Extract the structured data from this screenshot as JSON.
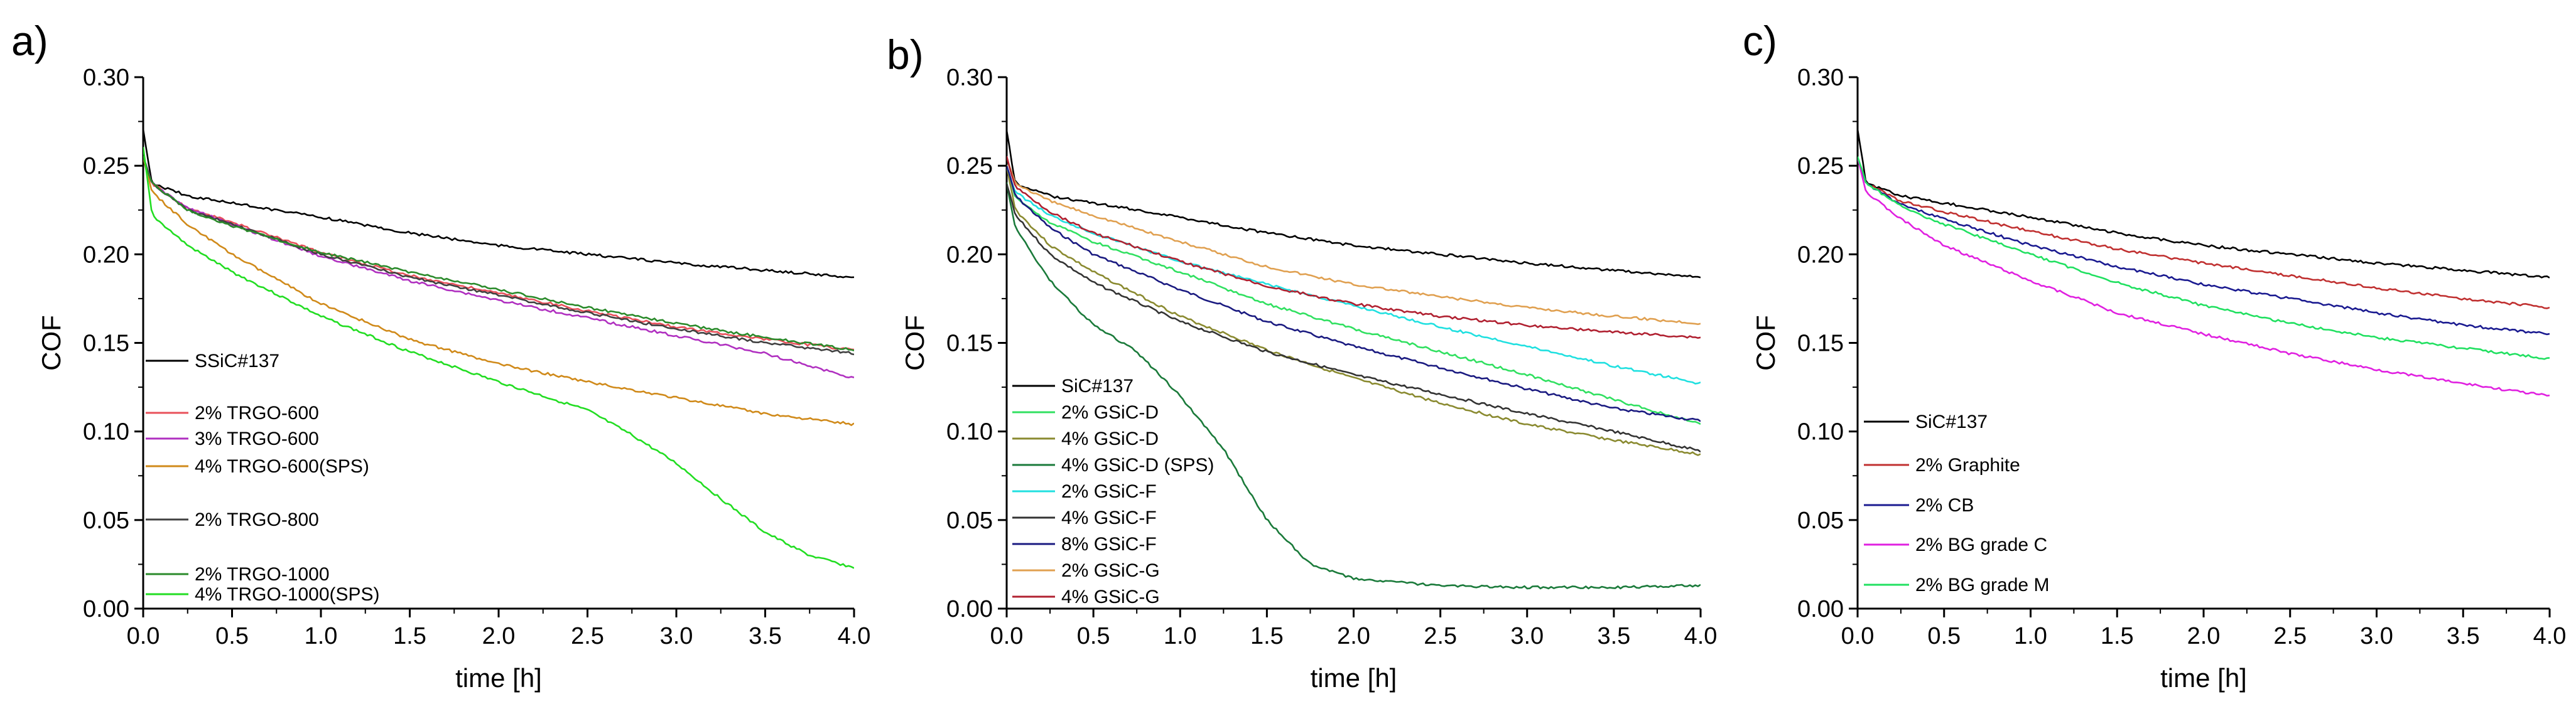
{
  "figure": {
    "description": "Coefficient of friction vs time for SiC composites"
  },
  "chart_data": [
    {
      "type": "line",
      "panel_label": "a)",
      "xlabel": "time [h]",
      "ylabel": "COF",
      "xlim": [
        0,
        4.0
      ],
      "ylim": [
        0,
        0.3
      ],
      "xticks": [
        "0.0",
        "0.5",
        "1.0",
        "1.5",
        "2.0",
        "2.5",
        "3.0",
        "3.5",
        "4.0"
      ],
      "yticks": [
        "0.00",
        "0.05",
        "0.10",
        "0.15",
        "0.20",
        "0.25",
        "0.30"
      ],
      "series": [
        {
          "name": "SSiC#137",
          "color": "#000000",
          "x": [
            0,
            0.05,
            0.25,
            0.5,
            1,
            1.5,
            2,
            2.5,
            3,
            3.5,
            4
          ],
          "y": [
            0.27,
            0.24,
            0.233,
            0.229,
            0.221,
            0.212,
            0.205,
            0.2,
            0.195,
            0.191,
            0.187
          ]
        },
        {
          "name": "2% TRGO-600",
          "color": "#e8505a",
          "x": [
            0,
            0.05,
            0.25,
            0.5,
            1,
            1.5,
            2,
            2.5,
            3,
            3.5,
            4
          ],
          "y": [
            0.255,
            0.24,
            0.226,
            0.218,
            0.201,
            0.188,
            0.178,
            0.168,
            0.159,
            0.152,
            0.146
          ]
        },
        {
          "name": "3% TRGO-600",
          "color": "#b030c0",
          "x": [
            0,
            0.05,
            0.25,
            0.5,
            1,
            1.5,
            2,
            2.5,
            3,
            3.5,
            4
          ],
          "y": [
            0.255,
            0.24,
            0.226,
            0.217,
            0.199,
            0.185,
            0.174,
            0.164,
            0.154,
            0.144,
            0.13
          ]
        },
        {
          "name": "4% TRGO-600(SPS)",
          "color": "#d08a1a",
          "x": [
            0,
            0.05,
            0.25,
            0.5,
            1,
            1.5,
            2,
            2.5,
            3,
            3.5,
            4
          ],
          "y": [
            0.255,
            0.235,
            0.217,
            0.2,
            0.172,
            0.152,
            0.138,
            0.128,
            0.119,
            0.11,
            0.104
          ]
        },
        {
          "name": "2% TRGO-800",
          "color": "#404040",
          "x": [
            0,
            0.05,
            0.25,
            0.5,
            1,
            1.5,
            2,
            2.5,
            3,
            3.5,
            4
          ],
          "y": [
            0.255,
            0.24,
            0.225,
            0.217,
            0.2,
            0.187,
            0.177,
            0.167,
            0.158,
            0.15,
            0.144
          ]
        },
        {
          "name": "2% TRGO-1000",
          "color": "#2a8a2a",
          "x": [
            0,
            0.05,
            0.25,
            0.5,
            1,
            1.5,
            2,
            2.5,
            3,
            3.5,
            4
          ],
          "y": [
            0.255,
            0.24,
            0.225,
            0.216,
            0.201,
            0.19,
            0.18,
            0.17,
            0.161,
            0.153,
            0.146
          ]
        },
        {
          "name": "4% TRGO-1000(SPS)",
          "color": "#22dd22",
          "x": [
            0,
            0.05,
            0.25,
            0.5,
            1,
            1.5,
            2,
            2.5,
            2.75,
            3,
            3.25,
            3.5,
            3.75,
            4
          ],
          "y": [
            0.26,
            0.222,
            0.205,
            0.19,
            0.165,
            0.145,
            0.128,
            0.112,
            0.098,
            0.082,
            0.062,
            0.043,
            0.03,
            0.023
          ]
        }
      ],
      "legend": {
        "placement": "lower-left",
        "entries": [
          "SSiC#137",
          "2% TRGO-600",
          "3% TRGO-600",
          "4% TRGO-600(SPS)",
          "2% TRGO-800",
          "2% TRGO-1000",
          "4% TRGO-1000(SPS)"
        ]
      }
    },
    {
      "type": "line",
      "panel_label": "b)",
      "xlabel": "time [h]",
      "ylabel": "COF",
      "xlim": [
        0,
        4.0
      ],
      "ylim": [
        0,
        0.3
      ],
      "xticks": [
        "0.0",
        "0.5",
        "1.0",
        "1.5",
        "2.0",
        "2.5",
        "3.0",
        "3.5",
        "4.0"
      ],
      "yticks": [
        "0.00",
        "0.05",
        "0.10",
        "0.15",
        "0.20",
        "0.25",
        "0.30"
      ],
      "series": [
        {
          "name": "SiC#137",
          "color": "#000000",
          "x": [
            0,
            0.05,
            0.25,
            0.5,
            1,
            1.5,
            2,
            2.5,
            3,
            3.5,
            4
          ],
          "y": [
            0.27,
            0.24,
            0.233,
            0.229,
            0.221,
            0.212,
            0.205,
            0.2,
            0.195,
            0.191,
            0.187
          ]
        },
        {
          "name": "2% GSiC-D",
          "color": "#30e060",
          "x": [
            0,
            0.05,
            0.25,
            0.5,
            1,
            1.5,
            2,
            2.5,
            3,
            3.5,
            4
          ],
          "y": [
            0.25,
            0.232,
            0.218,
            0.207,
            0.19,
            0.172,
            0.158,
            0.145,
            0.132,
            0.118,
            0.104
          ]
        },
        {
          "name": "4% GSiC-D",
          "color": "#8a8a30",
          "x": [
            0,
            0.05,
            0.25,
            0.5,
            1,
            1.5,
            2,
            2.5,
            3,
            3.5,
            4
          ],
          "y": [
            0.25,
            0.225,
            0.205,
            0.19,
            0.165,
            0.146,
            0.13,
            0.116,
            0.104,
            0.095,
            0.087
          ]
        },
        {
          "name": "4% GSiC-D (SPS)",
          "color": "#1a7a3a",
          "x": [
            0,
            0.05,
            0.25,
            0.5,
            0.75,
            1,
            1.25,
            1.5,
            1.75,
            2,
            2.5,
            3,
            3.5,
            4
          ],
          "y": [
            0.24,
            0.215,
            0.185,
            0.16,
            0.145,
            0.12,
            0.09,
            0.05,
            0.025,
            0.017,
            0.013,
            0.012,
            0.012,
            0.013
          ]
        },
        {
          "name": "2% GSiC-F",
          "color": "#20e0e0",
          "x": [
            0,
            0.05,
            0.25,
            0.5,
            1,
            1.5,
            2,
            2.5,
            3,
            3.5,
            4
          ],
          "y": [
            0.25,
            0.235,
            0.222,
            0.212,
            0.196,
            0.183,
            0.171,
            0.159,
            0.148,
            0.137,
            0.127
          ]
        },
        {
          "name": "4% GSiC-F",
          "color": "#333333",
          "x": [
            0,
            0.05,
            0.25,
            0.5,
            1,
            1.5,
            2,
            2.5,
            3,
            3.5,
            4
          ],
          "y": [
            0.24,
            0.222,
            0.2,
            0.184,
            0.162,
            0.145,
            0.132,
            0.121,
            0.11,
            0.1,
            0.089
          ]
        },
        {
          "name": "8% GSiC-F",
          "color": "#1a1a80",
          "x": [
            0,
            0.05,
            0.25,
            0.5,
            1,
            1.5,
            2,
            2.5,
            3,
            3.5,
            4
          ],
          "y": [
            0.25,
            0.233,
            0.215,
            0.2,
            0.18,
            0.162,
            0.148,
            0.136,
            0.124,
            0.113,
            0.106
          ]
        },
        {
          "name": "2% GSiC-G",
          "color": "#e0a050",
          "x": [
            0,
            0.05,
            0.25,
            0.5,
            1,
            1.5,
            2,
            2.5,
            3,
            3.5,
            4
          ],
          "y": [
            0.255,
            0.24,
            0.23,
            0.222,
            0.207,
            0.193,
            0.183,
            0.176,
            0.17,
            0.165,
            0.161
          ]
        },
        {
          "name": "4% GSiC-G",
          "color": "#b02030",
          "x": [
            0,
            0.05,
            0.25,
            0.5,
            1,
            1.5,
            2,
            2.5,
            3,
            3.5,
            4
          ],
          "y": [
            0.255,
            0.238,
            0.224,
            0.212,
            0.196,
            0.182,
            0.172,
            0.165,
            0.16,
            0.156,
            0.153
          ]
        }
      ],
      "legend": {
        "placement": "lower-left",
        "entries": [
          "SiC#137",
          "2% GSiC-D",
          "4% GSiC-D",
          "4% GSiC-D (SPS)",
          "2% GSiC-F",
          "4% GSiC-F",
          "8% GSiC-F",
          "2% GSiC-G",
          "4% GSiC-G"
        ]
      }
    },
    {
      "type": "line",
      "panel_label": "c)",
      "xlabel": "time [h]",
      "ylabel": "COF",
      "xlim": [
        0,
        4.0
      ],
      "ylim": [
        0,
        0.3
      ],
      "xticks": [
        "0.0",
        "0.5",
        "1.0",
        "1.5",
        "2.0",
        "2.5",
        "3.0",
        "3.5",
        "4.0"
      ],
      "yticks": [
        "0.00",
        "0.05",
        "0.10",
        "0.15",
        "0.20",
        "0.25",
        "0.30"
      ],
      "series": [
        {
          "name": "SiC#137",
          "color": "#000000",
          "x": [
            0,
            0.05,
            0.25,
            0.5,
            1,
            1.5,
            2,
            2.5,
            3,
            3.5,
            4
          ],
          "y": [
            0.27,
            0.24,
            0.233,
            0.229,
            0.221,
            0.212,
            0.205,
            0.2,
            0.195,
            0.191,
            0.187
          ]
        },
        {
          "name": "2% Graphite",
          "color": "#c03030",
          "x": [
            0,
            0.05,
            0.25,
            0.5,
            1,
            1.5,
            2,
            2.5,
            3,
            3.5,
            4
          ],
          "y": [
            0.255,
            0.24,
            0.23,
            0.224,
            0.213,
            0.203,
            0.195,
            0.188,
            0.181,
            0.175,
            0.17
          ]
        },
        {
          "name": "2% CB",
          "color": "#1a1a90",
          "x": [
            0,
            0.05,
            0.25,
            0.5,
            1,
            1.5,
            2,
            2.5,
            3,
            3.5,
            4
          ],
          "y": [
            0.255,
            0.24,
            0.228,
            0.22,
            0.205,
            0.193,
            0.183,
            0.175,
            0.167,
            0.16,
            0.155
          ]
        },
        {
          "name": "2% BG grade C",
          "color": "#e020e0",
          "x": [
            0,
            0.05,
            0.25,
            0.5,
            1,
            1.5,
            2,
            2.5,
            3,
            3.5,
            4
          ],
          "y": [
            0.255,
            0.235,
            0.22,
            0.205,
            0.185,
            0.167,
            0.155,
            0.144,
            0.135,
            0.127,
            0.12
          ]
        },
        {
          "name": "2% BG grade M",
          "color": "#20e060",
          "x": [
            0,
            0.05,
            0.25,
            0.5,
            1,
            1.5,
            2,
            2.5,
            3,
            3.5,
            4
          ],
          "y": [
            0.255,
            0.24,
            0.227,
            0.217,
            0.2,
            0.184,
            0.171,
            0.161,
            0.153,
            0.147,
            0.141
          ]
        }
      ],
      "legend": {
        "placement": "lower-left",
        "entries": [
          "SiC#137",
          "2% Graphite",
          "2% CB",
          "2% BG grade C",
          "2% BG grade M"
        ]
      }
    }
  ]
}
